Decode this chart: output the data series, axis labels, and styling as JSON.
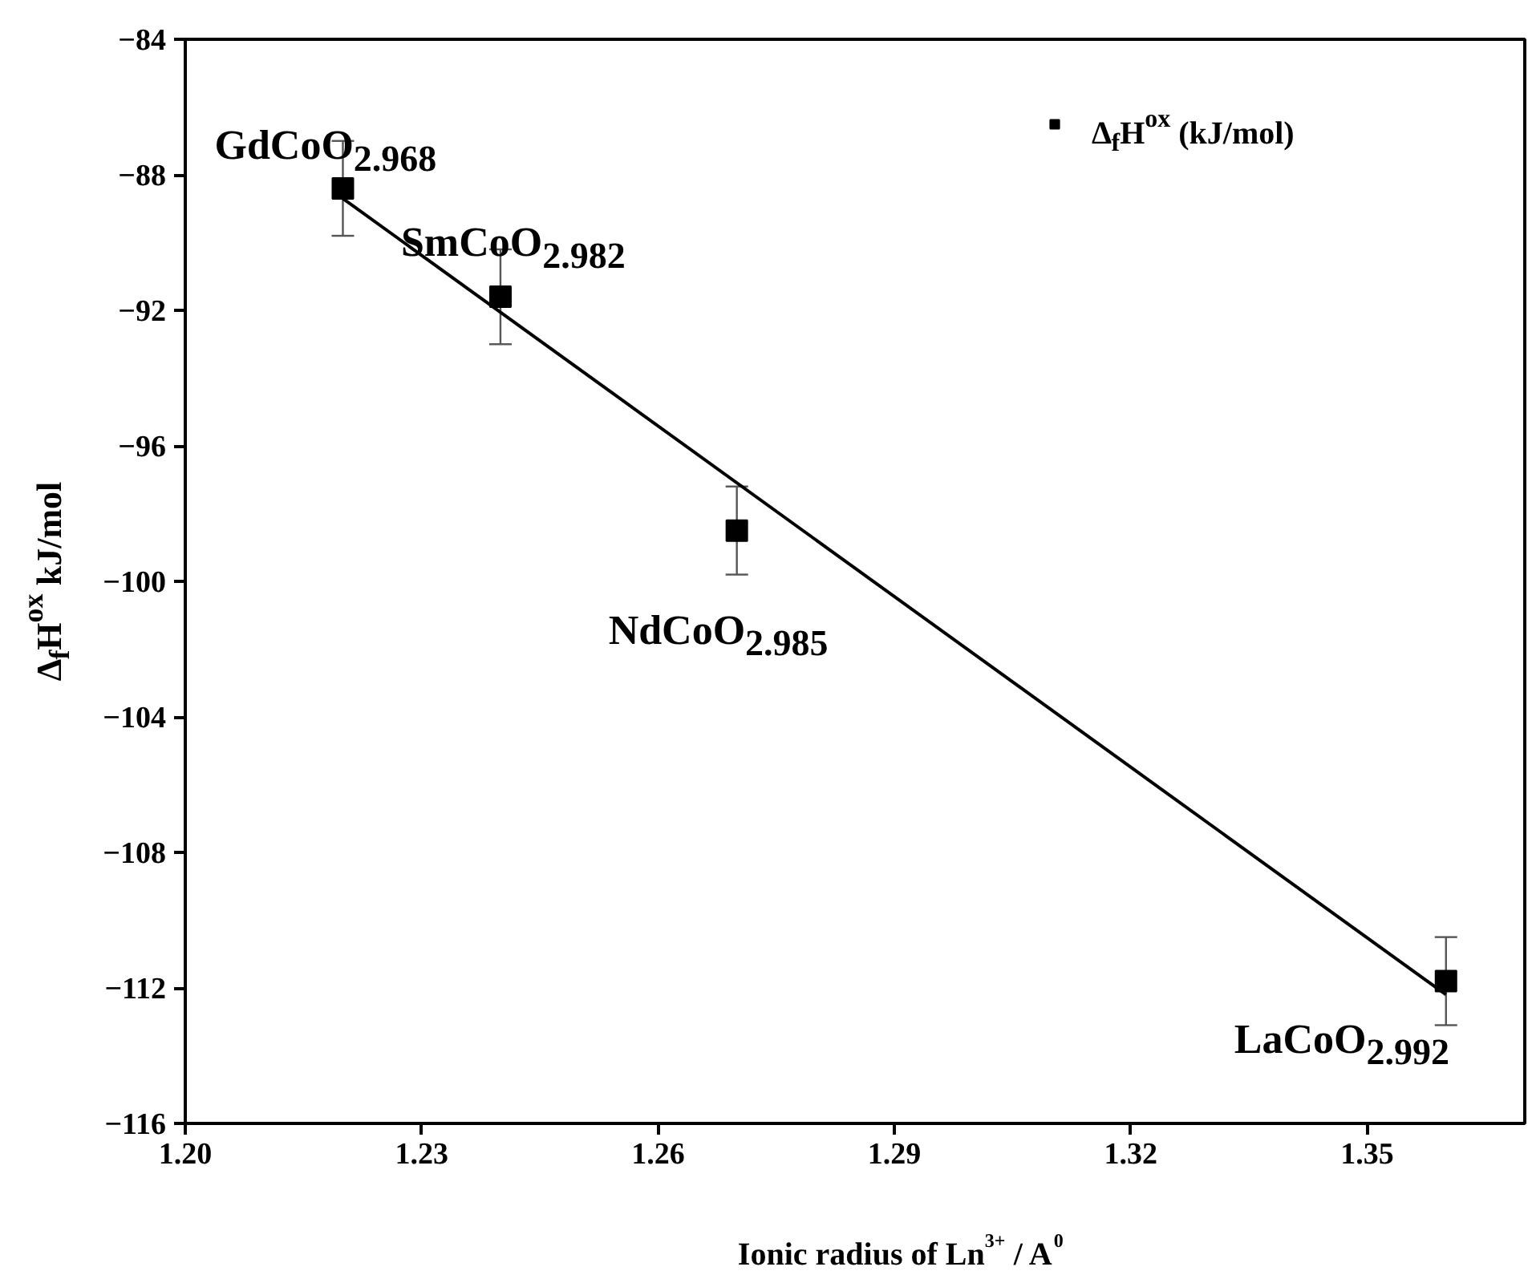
{
  "chart_data": {
    "type": "scatter",
    "xlabel": "Ionic radius of Ln$^{3+}$ / A$^{0}$",
    "ylabel": "Δ$_{f}$H$^{ox}$ kJ/mol",
    "xlim": [
      1.2,
      1.37
    ],
    "xticks": [
      {
        "value": 1.2,
        "label": "1.20"
      },
      1.23,
      1.26,
      1.29,
      1.32,
      1.35
    ],
    "ylim": [
      -116,
      -84
    ],
    "yticks": [
      -116,
      -112,
      -108,
      -104,
      -100,
      -96,
      -92,
      -88,
      -84
    ],
    "grid": false,
    "legend": "top right",
    "series": [
      {
        "name": "Δ$_{f}$H$^{ox}$ (kJ/mol)",
        "marker": "square",
        "color": "#000000",
        "x": [
          1.22,
          1.24,
          1.27,
          1.36
        ],
        "values": [
          -88.4,
          -91.6,
          -98.5,
          -111.8
        ],
        "errors": [
          1.4,
          1.4,
          1.3,
          1.3
        ]
      },
      {
        "type": "line",
        "color": "#000000",
        "x": [
          1.22,
          1.36
        ],
        "values": [
          -88.7,
          -112.2
        ]
      }
    ],
    "annotations": [
      {
        "text": "GdCoO$_{2.968}$",
        "x": 1.22,
        "y": -88.4
      },
      {
        "text": "SmCoO$_{2.982}$",
        "x": 1.24,
        "y": -91.6
      },
      {
        "text": "NdCoO$_{2.985}$",
        "x": 1.27,
        "y": -98.5
      },
      {
        "text": "LaCoO$_{2.992}$",
        "x": 1.36,
        "y": -111.8
      }
    ]
  }
}
